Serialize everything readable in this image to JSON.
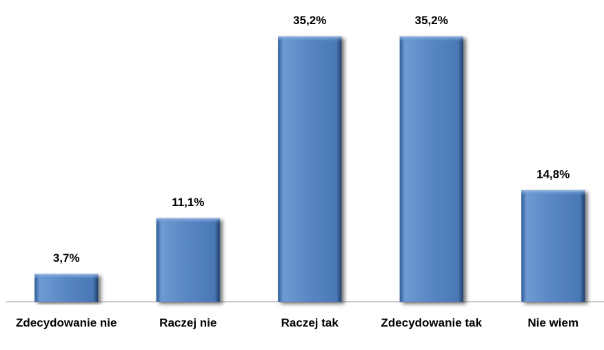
{
  "chart_data": {
    "type": "bar",
    "categories": [
      "Zdecydowanie nie",
      "Raczej nie",
      "Raczej tak",
      "Zdecydowanie tak",
      "Nie wiem"
    ],
    "values": [
      3.7,
      11.1,
      35.2,
      35.2,
      14.8
    ],
    "value_labels": [
      "3,7%",
      "11,1%",
      "35,2%",
      "35,2%",
      "14,8%"
    ],
    "color": "#4f81bd",
    "ylim": [
      0,
      40
    ]
  }
}
